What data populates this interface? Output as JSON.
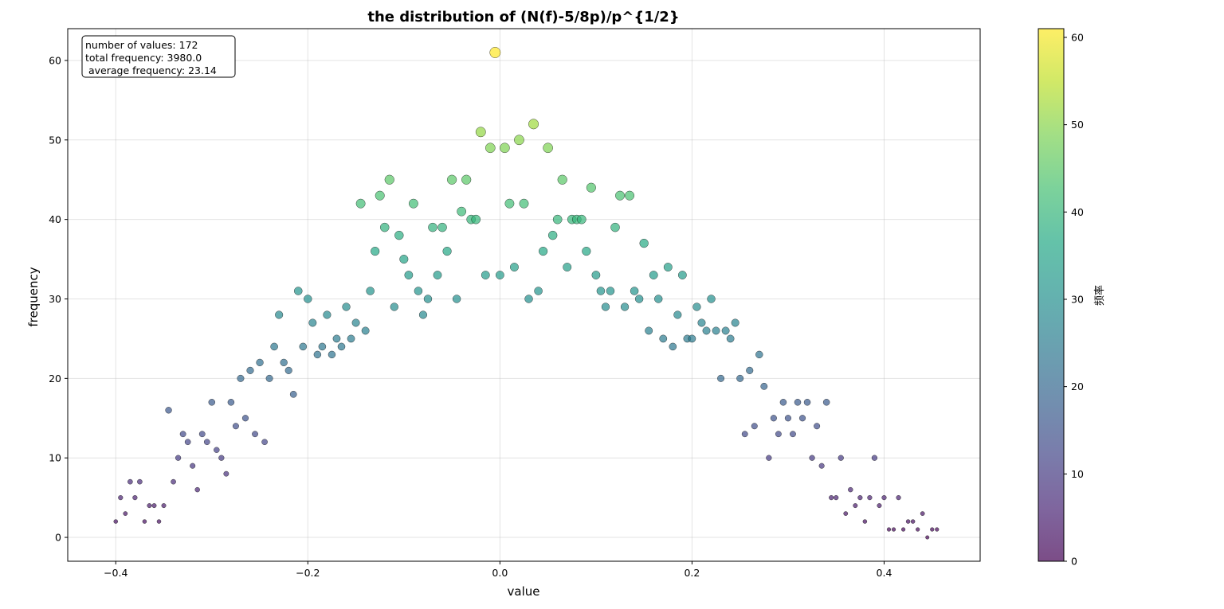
{
  "chart_data": {
    "type": "scatter",
    "title": "the distribution of (N(f)-5/8p)/p^{1/2}",
    "xlabel": "value",
    "ylabel": "frequency",
    "xlim": [
      -0.45,
      0.5
    ],
    "ylim": [
      -3,
      64
    ],
    "x_ticks": [
      -0.4,
      -0.2,
      0.0,
      0.2,
      0.4
    ],
    "x_tick_labels": [
      "−0.4",
      "−0.2",
      "0.0",
      "0.2",
      "0.4"
    ],
    "y_ticks": [
      0,
      10,
      20,
      30,
      40,
      50,
      60
    ],
    "y_tick_labels": [
      "0",
      "10",
      "20",
      "30",
      "40",
      "50",
      "60"
    ],
    "grid": true,
    "marker_size_encodes": "frequency",
    "colormap": "viridis",
    "colorbar": {
      "label": "频率",
      "range": [
        0,
        61
      ],
      "ticks": [
        0,
        10,
        20,
        30,
        40,
        50,
        60
      ],
      "tick_labels": [
        "0",
        "10",
        "20",
        "30",
        "40",
        "50",
        "60"
      ]
    },
    "stats_box": {
      "lines": [
        "number of values: 172",
        "total frequency: 3980.0",
        " average frequency: 23.14"
      ]
    },
    "points": [
      [
        -0.4,
        2
      ],
      [
        -0.395,
        5
      ],
      [
        -0.39,
        3
      ],
      [
        -0.385,
        7
      ],
      [
        -0.38,
        5
      ],
      [
        -0.375,
        7
      ],
      [
        -0.37,
        2
      ],
      [
        -0.365,
        4
      ],
      [
        -0.36,
        4
      ],
      [
        -0.355,
        2
      ],
      [
        -0.35,
        4
      ],
      [
        -0.345,
        16
      ],
      [
        -0.34,
        7
      ],
      [
        -0.335,
        10
      ],
      [
        -0.33,
        13
      ],
      [
        -0.325,
        12
      ],
      [
        -0.32,
        9
      ],
      [
        -0.315,
        6
      ],
      [
        -0.31,
        13
      ],
      [
        -0.305,
        12
      ],
      [
        -0.3,
        17
      ],
      [
        -0.295,
        11
      ],
      [
        -0.29,
        10
      ],
      [
        -0.285,
        8
      ],
      [
        -0.28,
        17
      ],
      [
        -0.275,
        14
      ],
      [
        -0.27,
        20
      ],
      [
        -0.265,
        15
      ],
      [
        -0.26,
        21
      ],
      [
        -0.255,
        13
      ],
      [
        -0.25,
        22
      ],
      [
        -0.245,
        12
      ],
      [
        -0.24,
        20
      ],
      [
        -0.235,
        24
      ],
      [
        -0.23,
        28
      ],
      [
        -0.225,
        22
      ],
      [
        -0.22,
        21
      ],
      [
        -0.215,
        18
      ],
      [
        -0.21,
        31
      ],
      [
        -0.205,
        24
      ],
      [
        -0.2,
        30
      ],
      [
        -0.195,
        27
      ],
      [
        -0.19,
        23
      ],
      [
        -0.185,
        24
      ],
      [
        -0.18,
        28
      ],
      [
        -0.175,
        23
      ],
      [
        -0.17,
        25
      ],
      [
        -0.165,
        24
      ],
      [
        -0.16,
        29
      ],
      [
        -0.155,
        25
      ],
      [
        -0.15,
        27
      ],
      [
        -0.145,
        42
      ],
      [
        -0.14,
        26
      ],
      [
        -0.135,
        31
      ],
      [
        -0.13,
        36
      ],
      [
        -0.125,
        43
      ],
      [
        -0.12,
        39
      ],
      [
        -0.115,
        45
      ],
      [
        -0.11,
        29
      ],
      [
        -0.105,
        38
      ],
      [
        -0.1,
        35
      ],
      [
        -0.095,
        33
      ],
      [
        -0.09,
        42
      ],
      [
        -0.085,
        31
      ],
      [
        -0.08,
        28
      ],
      [
        -0.075,
        30
      ],
      [
        -0.07,
        39
      ],
      [
        -0.065,
        33
      ],
      [
        -0.06,
        39
      ],
      [
        -0.055,
        36
      ],
      [
        -0.05,
        45
      ],
      [
        -0.045,
        30
      ],
      [
        -0.04,
        41
      ],
      [
        -0.035,
        45
      ],
      [
        -0.03,
        40
      ],
      [
        -0.025,
        40
      ],
      [
        -0.02,
        51
      ],
      [
        -0.015,
        33
      ],
      [
        -0.01,
        49
      ],
      [
        -0.005,
        61
      ],
      [
        0.0,
        33
      ],
      [
        0.005,
        49
      ],
      [
        0.01,
        42
      ],
      [
        0.015,
        34
      ],
      [
        0.02,
        50
      ],
      [
        0.025,
        42
      ],
      [
        0.03,
        30
      ],
      [
        0.035,
        52
      ],
      [
        0.04,
        31
      ],
      [
        0.045,
        36
      ],
      [
        0.05,
        49
      ],
      [
        0.055,
        38
      ],
      [
        0.06,
        40
      ],
      [
        0.065,
        45
      ],
      [
        0.07,
        34
      ],
      [
        0.075,
        40
      ],
      [
        0.08,
        40
      ],
      [
        0.085,
        40
      ],
      [
        0.09,
        36
      ],
      [
        0.095,
        44
      ],
      [
        0.1,
        33
      ],
      [
        0.105,
        31
      ],
      [
        0.11,
        29
      ],
      [
        0.115,
        31
      ],
      [
        0.12,
        39
      ],
      [
        0.125,
        43
      ],
      [
        0.13,
        29
      ],
      [
        0.135,
        43
      ],
      [
        0.14,
        31
      ],
      [
        0.145,
        30
      ],
      [
        0.15,
        37
      ],
      [
        0.155,
        26
      ],
      [
        0.16,
        33
      ],
      [
        0.165,
        30
      ],
      [
        0.17,
        25
      ],
      [
        0.175,
        34
      ],
      [
        0.18,
        24
      ],
      [
        0.185,
        28
      ],
      [
        0.19,
        33
      ],
      [
        0.195,
        25
      ],
      [
        0.2,
        25
      ],
      [
        0.205,
        29
      ],
      [
        0.21,
        27
      ],
      [
        0.215,
        26
      ],
      [
        0.22,
        30
      ],
      [
        0.225,
        26
      ],
      [
        0.23,
        20
      ],
      [
        0.235,
        26
      ],
      [
        0.24,
        25
      ],
      [
        0.245,
        27
      ],
      [
        0.25,
        20
      ],
      [
        0.255,
        13
      ],
      [
        0.26,
        21
      ],
      [
        0.265,
        14
      ],
      [
        0.27,
        23
      ],
      [
        0.275,
        19
      ],
      [
        0.28,
        10
      ],
      [
        0.285,
        15
      ],
      [
        0.29,
        13
      ],
      [
        0.295,
        17
      ],
      [
        0.3,
        15
      ],
      [
        0.305,
        13
      ],
      [
        0.31,
        17
      ],
      [
        0.315,
        15
      ],
      [
        0.32,
        17
      ],
      [
        0.325,
        10
      ],
      [
        0.33,
        14
      ],
      [
        0.335,
        9
      ],
      [
        0.34,
        17
      ],
      [
        0.345,
        5
      ],
      [
        0.35,
        5
      ],
      [
        0.355,
        10
      ],
      [
        0.36,
        3
      ],
      [
        0.365,
        6
      ],
      [
        0.37,
        4
      ],
      [
        0.375,
        5
      ],
      [
        0.38,
        2
      ],
      [
        0.385,
        5
      ],
      [
        0.39,
        10
      ],
      [
        0.395,
        4
      ],
      [
        0.4,
        5
      ],
      [
        0.405,
        1
      ],
      [
        0.41,
        1
      ],
      [
        0.415,
        5
      ],
      [
        0.42,
        1
      ],
      [
        0.425,
        2
      ],
      [
        0.43,
        2
      ],
      [
        0.435,
        1
      ],
      [
        0.44,
        3
      ],
      [
        0.445,
        0
      ],
      [
        0.45,
        1
      ],
      [
        0.455,
        1
      ]
    ]
  }
}
